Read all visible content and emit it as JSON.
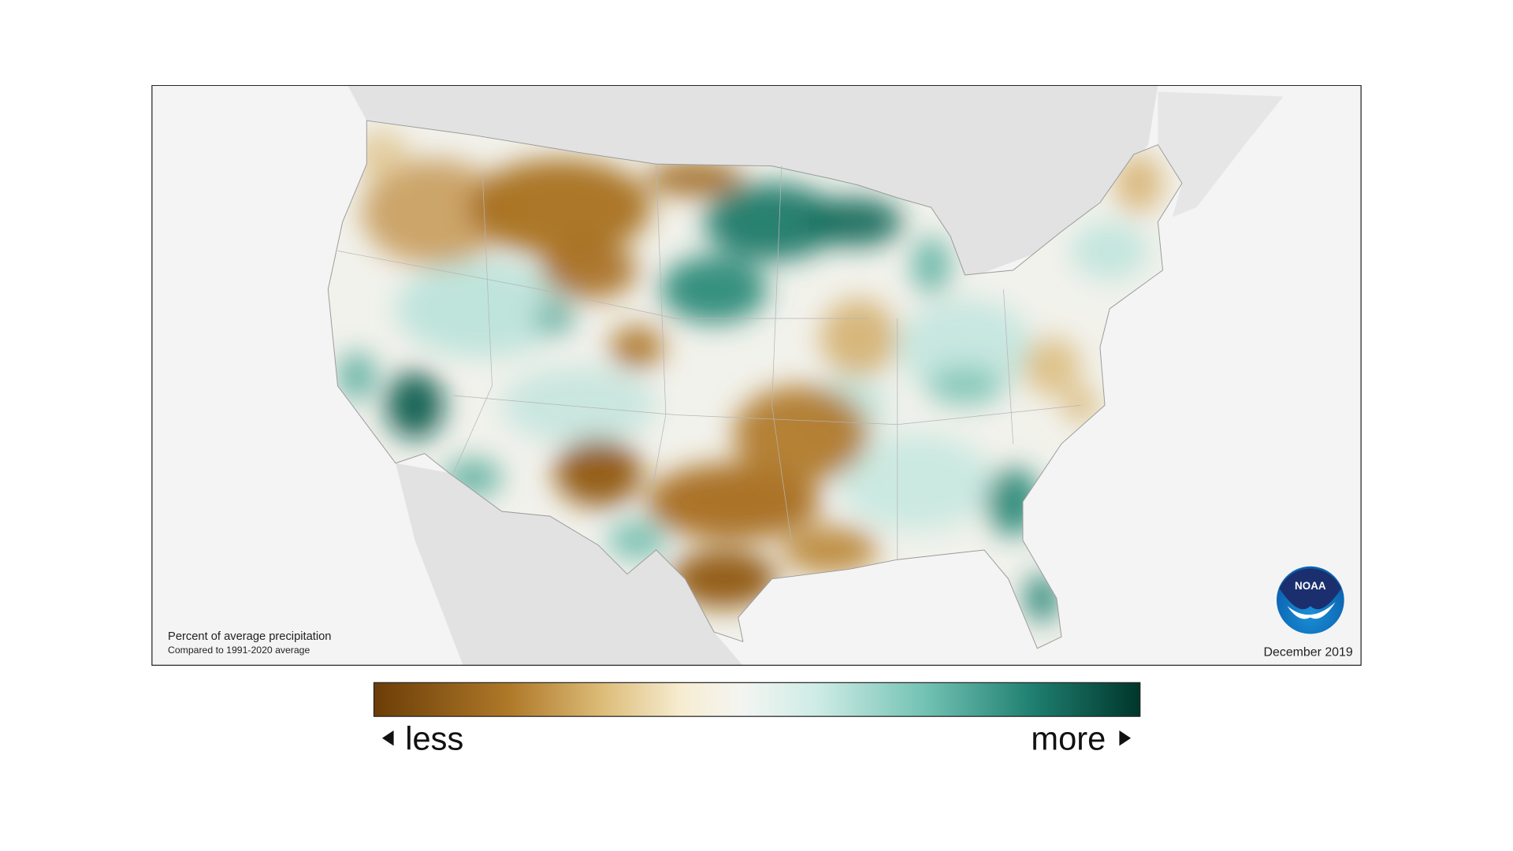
{
  "map": {
    "caption": {
      "title": "Percent of average precipitation",
      "subtitle": "Compared to 1991-2020 average"
    },
    "period": "December 2019",
    "logo": "NOAA"
  },
  "legend": {
    "low": "less",
    "high": "more"
  }
}
